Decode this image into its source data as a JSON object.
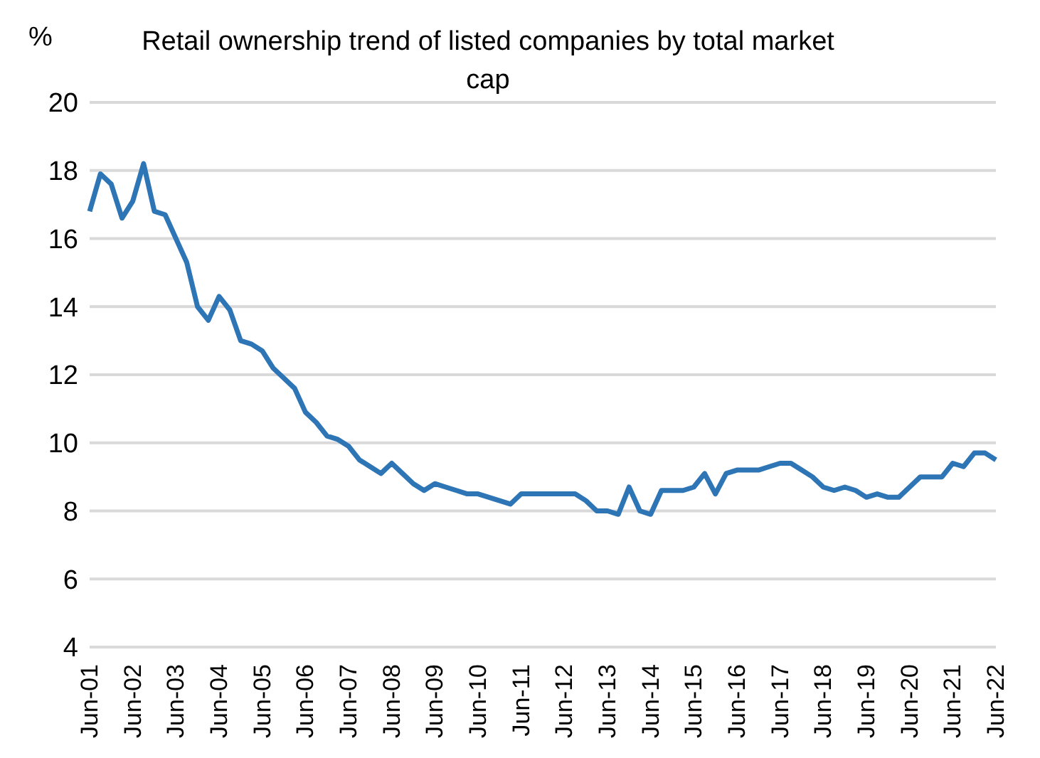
{
  "chart_data": {
    "type": "line",
    "title": "Retail ownership trend of listed companies by total market cap",
    "ylabel": "%",
    "categories": [
      "Jun-01",
      null,
      null,
      null,
      "Jun-02",
      null,
      null,
      null,
      "Jun-03",
      null,
      null,
      null,
      "Jun-04",
      null,
      null,
      null,
      "Jun-05",
      null,
      null,
      null,
      "Jun-06",
      null,
      null,
      null,
      "Jun-07",
      null,
      null,
      null,
      "Jun-08",
      null,
      null,
      null,
      "Jun-09",
      null,
      null,
      null,
      "Jun-10",
      null,
      null,
      null,
      "Jun-11",
      null,
      null,
      null,
      "Jun-12",
      null,
      null,
      null,
      "Jun-13",
      null,
      null,
      null,
      "Jun-14",
      null,
      null,
      null,
      "Jun-15",
      null,
      null,
      null,
      "Jun-16",
      null,
      null,
      null,
      "Jun-17",
      null,
      null,
      null,
      "Jun-18",
      null,
      null,
      null,
      "Jun-19",
      null,
      null,
      null,
      "Jun-20",
      null,
      null,
      null,
      "Jun-21",
      null,
      null,
      null,
      "Jun-22"
    ],
    "series": [
      {
        "color": "#2e75b6",
        "values": [
          16.8,
          17.9,
          17.6,
          16.6,
          17.1,
          18.2,
          16.8,
          16.7,
          16.0,
          15.3,
          14.0,
          13.6,
          14.3,
          13.9,
          13.0,
          12.9,
          12.7,
          12.2,
          11.9,
          11.6,
          10.9,
          10.6,
          10.2,
          10.1,
          9.9,
          9.5,
          9.3,
          9.1,
          9.4,
          9.1,
          8.8,
          8.6,
          8.8,
          8.7,
          8.6,
          8.5,
          8.5,
          8.4,
          8.3,
          8.2,
          8.5,
          8.5,
          8.5,
          8.5,
          8.5,
          8.5,
          8.3,
          8.0,
          8.0,
          7.9,
          8.7,
          8.0,
          7.9,
          8.6,
          8.6,
          8.6,
          8.7,
          9.1,
          8.5,
          9.1,
          9.2,
          9.2,
          9.2,
          9.3,
          9.4,
          9.4,
          9.2,
          9.0,
          8.7,
          8.6,
          8.7,
          8.6,
          8.4,
          8.5,
          8.4,
          8.4,
          8.7,
          9.0,
          9.0,
          9.0,
          9.4,
          9.3,
          9.7,
          9.7,
          9.5
        ]
      }
    ],
    "ylim": [
      4,
      20
    ],
    "yticks": [
      4,
      6,
      8,
      10,
      12,
      14,
      16,
      18,
      20
    ],
    "grid": "y",
    "legend": false,
    "marker": "none",
    "line_style": "solid"
  }
}
